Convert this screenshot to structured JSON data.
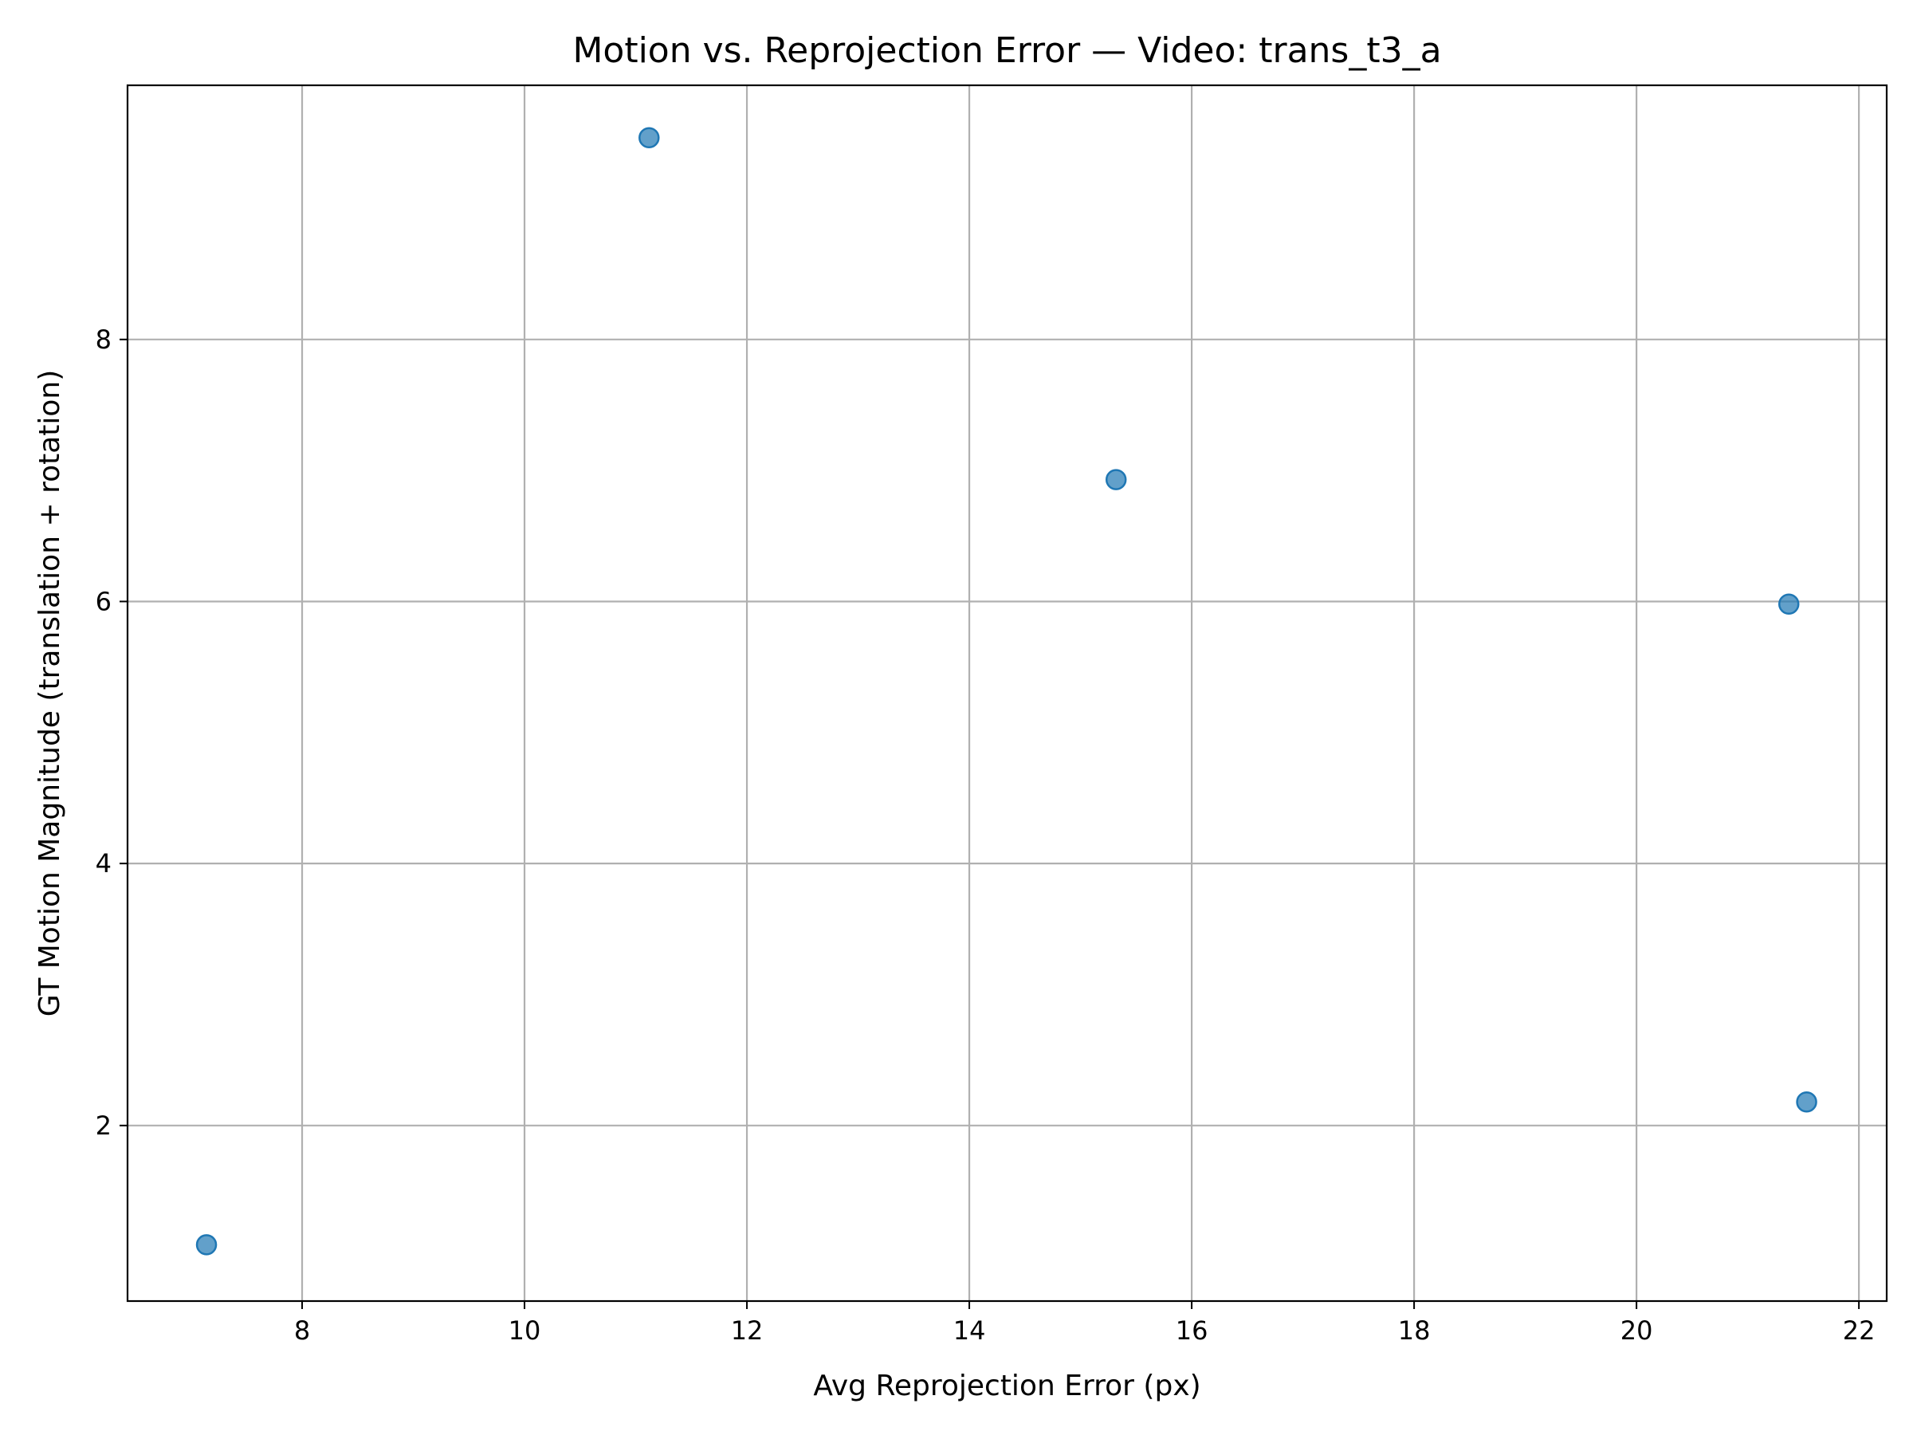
{
  "chart_data": {
    "type": "scatter",
    "title": "Motion vs. Reprojection Error — Video: trans_t3_a",
    "xlabel": "Avg Reprojection Error (px)",
    "ylabel": "GT Motion Magnitude (translation + rotation)",
    "xlim": [
      6.43,
      22.25
    ],
    "ylim": [
      0.66,
      9.94
    ],
    "xticks": [
      8,
      10,
      12,
      14,
      16,
      18,
      20,
      22
    ],
    "yticks": [
      2,
      4,
      6,
      8
    ],
    "grid": true,
    "legend": "none",
    "marker_color": "#1f77b4",
    "series": [
      {
        "x": [
          7.14,
          11.12,
          15.32,
          21.37,
          21.53
        ],
        "y": [
          1.09,
          9.54,
          6.93,
          5.98,
          2.18
        ]
      }
    ]
  }
}
